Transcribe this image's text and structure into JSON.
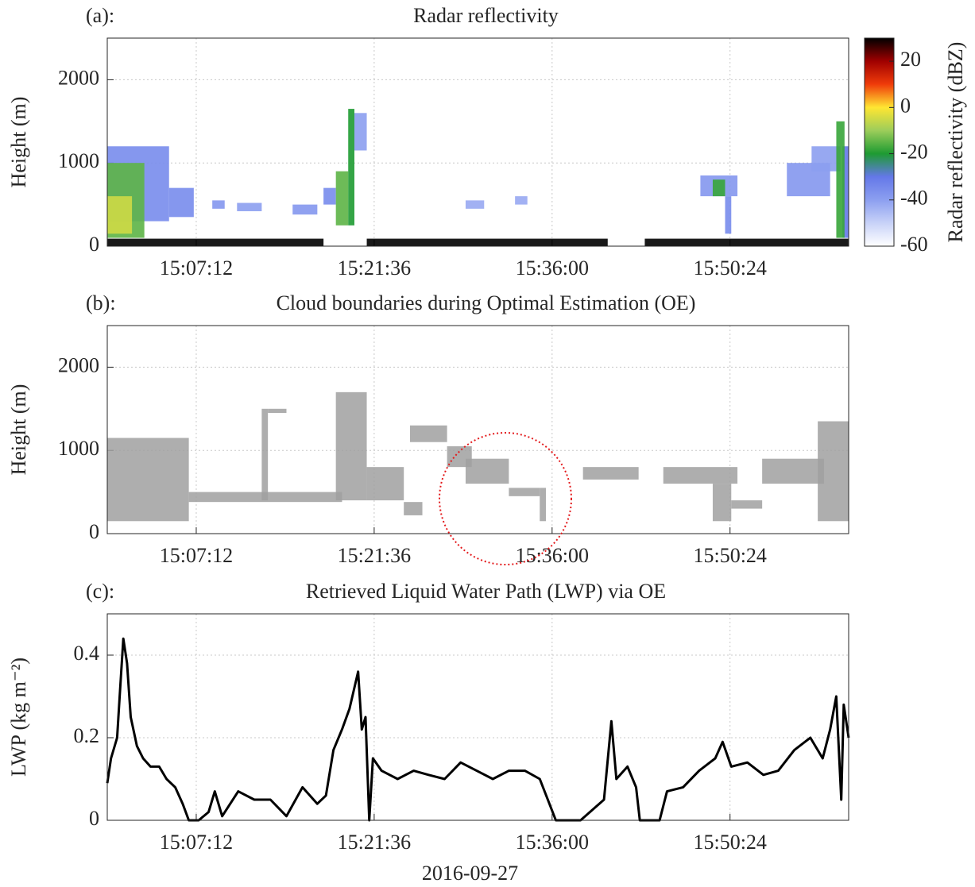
{
  "chart_data": [
    {
      "type": "heatmap",
      "label": "(a):",
      "title": "Radar reflectivity",
      "ylabel": "Height (m)",
      "xlim": [
        "15:00:00",
        "16:00:00"
      ],
      "xticks": [
        "15:07:12",
        "15:21:36",
        "15:36:00",
        "15:50:24"
      ],
      "ylim": [
        0,
        2500
      ],
      "yticks": [
        0,
        1000,
        2000
      ],
      "grid": true,
      "clim": [
        -60,
        30
      ],
      "cticks": [
        20,
        0,
        -20,
        -40,
        -60
      ],
      "colorbar_label": "Radar reflectivity (dBZ)",
      "colormap": [
        "#ffffff",
        "#c8d2f8",
        "#8c9ff0",
        "#6478e8",
        "#1e9b32",
        "#9ccd5a",
        "#ffe632",
        "#f03c0a",
        "#a00000",
        "#000000"
      ],
      "echoes": [
        {
          "start": "15:00:00",
          "end": "15:05:00",
          "bottom": 300,
          "top": 1200,
          "dbz": -35
        },
        {
          "start": "15:05:00",
          "end": "15:07:00",
          "bottom": 350,
          "top": 700,
          "dbz": -35
        },
        {
          "start": "15:00:00",
          "end": "15:03:00",
          "bottom": 100,
          "top": 1000,
          "dbz": -15
        },
        {
          "start": "15:00:00",
          "end": "15:02:00",
          "bottom": 150,
          "top": 600,
          "dbz": -5
        },
        {
          "start": "15:08:30",
          "end": "15:09:30",
          "bottom": 450,
          "top": 550,
          "dbz": -38
        },
        {
          "start": "15:10:30",
          "end": "15:12:30",
          "bottom": 420,
          "top": 520,
          "dbz": -40
        },
        {
          "start": "15:15:00",
          "end": "15:17:00",
          "bottom": 380,
          "top": 500,
          "dbz": -38
        },
        {
          "start": "15:17:30",
          "end": "15:18:30",
          "bottom": 500,
          "top": 700,
          "dbz": -35
        },
        {
          "start": "15:18:30",
          "end": "15:19:30",
          "bottom": 250,
          "top": 900,
          "dbz": -15
        },
        {
          "start": "15:19:30",
          "end": "15:20:00",
          "bottom": 250,
          "top": 1650,
          "dbz": -20
        },
        {
          "start": "15:20:00",
          "end": "15:21:00",
          "bottom": 1150,
          "top": 1600,
          "dbz": -40
        },
        {
          "start": "15:29:00",
          "end": "15:30:30",
          "bottom": 450,
          "top": 550,
          "dbz": -42
        },
        {
          "start": "15:33:00",
          "end": "15:34:00",
          "bottom": 500,
          "top": 600,
          "dbz": -42
        },
        {
          "start": "15:48:00",
          "end": "15:51:00",
          "bottom": 600,
          "top": 850,
          "dbz": -38
        },
        {
          "start": "15:49:00",
          "end": "15:50:00",
          "bottom": 600,
          "top": 800,
          "dbz": -18
        },
        {
          "start": "15:50:00",
          "end": "15:50:30",
          "bottom": 150,
          "top": 600,
          "dbz": -35
        },
        {
          "start": "15:55:00",
          "end": "15:58:30",
          "bottom": 600,
          "top": 1000,
          "dbz": -38
        },
        {
          "start": "15:57:00",
          "end": "15:59:20",
          "bottom": 900,
          "top": 1200,
          "dbz": -40
        },
        {
          "start": "15:59:30",
          "end": "16:00:00",
          "bottom": 100,
          "top": 1200,
          "dbz": -30
        },
        {
          "start": "15:59:00",
          "end": "15:59:40",
          "bottom": 100,
          "top": 1500,
          "dbz": -18
        },
        {
          "start": "15:00:00",
          "end": "15:17:30",
          "bottom": 0,
          "top": 90,
          "dbz": 30
        },
        {
          "start": "15:21:00",
          "end": "15:40:30",
          "bottom": 0,
          "top": 90,
          "dbz": 30
        },
        {
          "start": "15:43:30",
          "end": "16:00:00",
          "bottom": 0,
          "top": 90,
          "dbz": 30
        }
      ]
    },
    {
      "type": "range",
      "label": "(b):",
      "title": "Cloud boundaries during Optimal Estimation (OE)",
      "ylabel": "Height (m)",
      "xlim": [
        "15:00:00",
        "16:00:00"
      ],
      "xticks": [
        "15:07:12",
        "15:21:36",
        "15:36:00",
        "15:50:24"
      ],
      "ylim": [
        0,
        2500
      ],
      "yticks": [
        0,
        1000,
        2000
      ],
      "grid": true,
      "color": "#a0a0a0",
      "layers": [
        {
          "start": "15:00:00",
          "end": "15:06:36",
          "base": 150,
          "top": 1150
        },
        {
          "start": "15:06:36",
          "end": "15:19:00",
          "base": 380,
          "top": 500
        },
        {
          "start": "15:12:30",
          "end": "15:13:00",
          "base": 400,
          "top": 1500
        },
        {
          "start": "15:13:00",
          "end": "15:14:30",
          "base": 1450,
          "top": 1500
        },
        {
          "start": "15:18:30",
          "end": "15:21:00",
          "base": 400,
          "top": 1700
        },
        {
          "start": "15:21:00",
          "end": "15:24:00",
          "base": 400,
          "top": 800
        },
        {
          "start": "15:24:00",
          "end": "15:25:30",
          "base": 220,
          "top": 380
        },
        {
          "start": "15:24:30",
          "end": "15:27:30",
          "base": 1100,
          "top": 1300
        },
        {
          "start": "15:27:30",
          "end": "15:29:30",
          "base": 800,
          "top": 1050
        },
        {
          "start": "15:29:00",
          "end": "15:32:30",
          "base": 600,
          "top": 900
        },
        {
          "start": "15:32:30",
          "end": "15:35:00",
          "base": 450,
          "top": 550
        },
        {
          "start": "15:35:00",
          "end": "15:35:30",
          "base": 150,
          "top": 550
        },
        {
          "start": "15:38:30",
          "end": "15:43:00",
          "base": 650,
          "top": 800
        },
        {
          "start": "15:45:00",
          "end": "15:51:00",
          "base": 600,
          "top": 800
        },
        {
          "start": "15:49:00",
          "end": "15:50:30",
          "base": 150,
          "top": 600
        },
        {
          "start": "15:50:30",
          "end": "15:53:00",
          "base": 300,
          "top": 400
        },
        {
          "start": "15:53:00",
          "end": "15:58:00",
          "base": 600,
          "top": 900
        },
        {
          "start": "15:57:30",
          "end": "16:00:00",
          "base": 150,
          "top": 1350
        }
      ]
    },
    {
      "type": "line",
      "label": "(c):",
      "title": "Retrieved Liquid Water Path (LWP) via OE",
      "ylabel": "LWP (kg m⁻²)",
      "xlabel": "2016-09-27",
      "xlim": [
        "15:00:00",
        "16:00:00"
      ],
      "xticks": [
        "15:07:12",
        "15:21:36",
        "15:36:00",
        "15:50:24"
      ],
      "ylim": [
        0,
        0.5
      ],
      "yticks": [
        0,
        0.2,
        0.4
      ],
      "grid": true,
      "color": "#000000",
      "x": [
        "15:00:00",
        "15:00:18",
        "15:00:48",
        "15:01:00",
        "15:01:18",
        "15:01:36",
        "15:01:54",
        "15:02:24",
        "15:02:54",
        "15:03:30",
        "15:04:12",
        "15:04:48",
        "15:05:30",
        "15:06:06",
        "15:06:36",
        "15:07:24",
        "15:08:12",
        "15:08:42",
        "15:09:18",
        "15:10:36",
        "15:11:54",
        "15:13:12",
        "15:14:30",
        "15:15:48",
        "15:17:00",
        "15:17:42",
        "15:18:18",
        "15:19:00",
        "15:19:36",
        "15:20:18",
        "15:20:36",
        "15:20:54",
        "15:21:12",
        "15:21:30",
        "15:22:12",
        "15:23:30",
        "15:24:48",
        "15:26:00",
        "15:27:18",
        "15:28:36",
        "15:29:54",
        "15:31:12",
        "15:32:30",
        "15:33:48",
        "15:35:00",
        "15:36:18",
        "15:38:18",
        "15:40:12",
        "15:40:48",
        "15:41:12",
        "15:42:06",
        "15:42:48",
        "15:43:06",
        "15:44:42",
        "15:45:18",
        "15:46:36",
        "15:47:54",
        "15:49:12",
        "15:49:48",
        "15:50:30",
        "15:51:48",
        "15:53:06",
        "15:54:18",
        "15:55:36",
        "15:56:54",
        "15:57:54",
        "15:58:30",
        "15:59:00",
        "15:59:24",
        "15:59:36",
        "16:00:00"
      ],
      "values": [
        0.09,
        0.15,
        0.2,
        0.3,
        0.44,
        0.38,
        0.25,
        0.18,
        0.15,
        0.13,
        0.13,
        0.1,
        0.08,
        0.04,
        0,
        0,
        0.02,
        0.07,
        0.01,
        0.07,
        0.05,
        0.05,
        0.01,
        0.08,
        0.04,
        0.06,
        0.17,
        0.22,
        0.27,
        0.36,
        0.22,
        0.25,
        0,
        0.15,
        0.12,
        0.1,
        0.12,
        0.11,
        0.1,
        0.14,
        0.12,
        0.1,
        0.12,
        0.12,
        0.1,
        0,
        0,
        0.05,
        0.24,
        0.1,
        0.13,
        0.08,
        0,
        0,
        0.07,
        0.08,
        0.12,
        0.15,
        0.19,
        0.13,
        0.14,
        0.11,
        0.12,
        0.17,
        0.2,
        0.15,
        0.22,
        0.3,
        0.05,
        0.28,
        0.2
      ]
    }
  ]
}
